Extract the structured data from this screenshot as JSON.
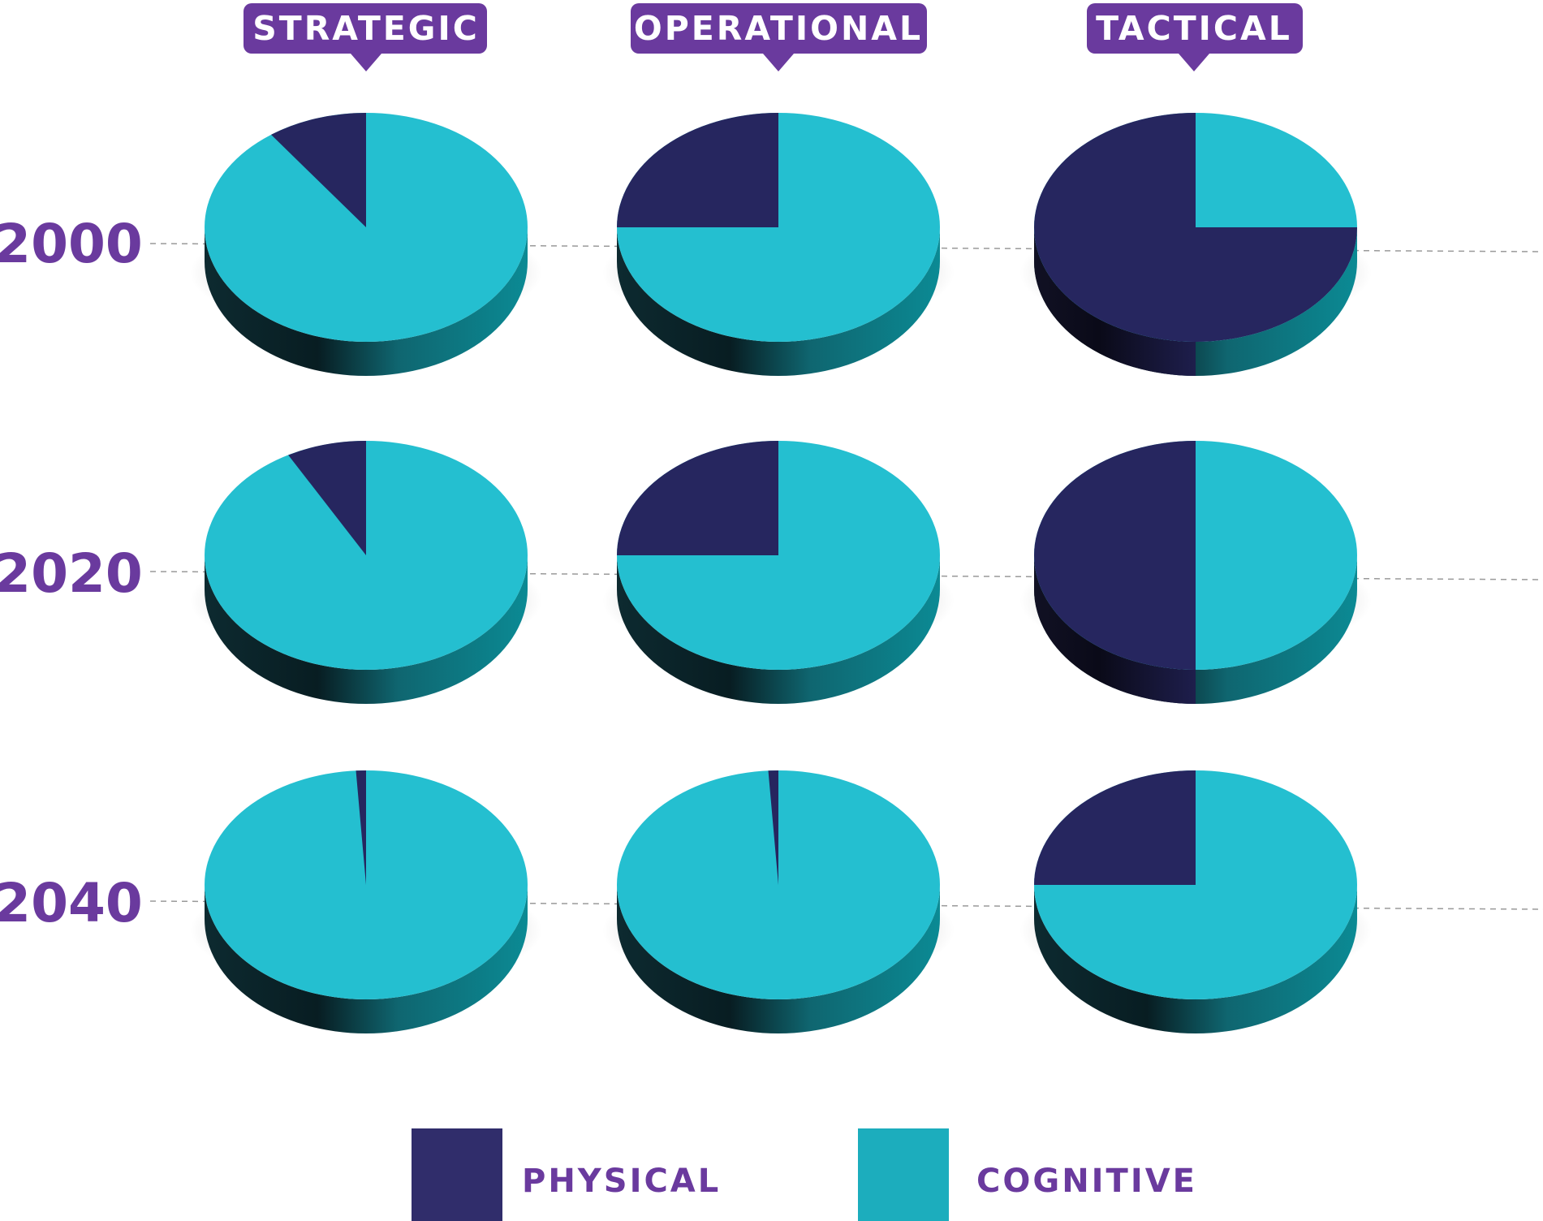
{
  "colors": {
    "physical": "#26265f",
    "cognitive": "#24bfd0",
    "label_bg": "#6a3a9e",
    "row_label": "#6a3a9e"
  },
  "chart_data": {
    "type": "pie",
    "columns": [
      "STRATEGIC",
      "OPERATIONAL",
      "TACTICAL"
    ],
    "rows": [
      "2000",
      "2020",
      "2040"
    ],
    "legend": [
      {
        "key": "physical",
        "label": "PHYSICAL"
      },
      {
        "key": "cognitive",
        "label": "COGNITIVE"
      }
    ],
    "physical_share": [
      [
        0.1,
        0.25,
        0.75
      ],
      [
        0.08,
        0.25,
        0.5
      ],
      [
        0.01,
        0.01,
        0.25
      ]
    ]
  }
}
